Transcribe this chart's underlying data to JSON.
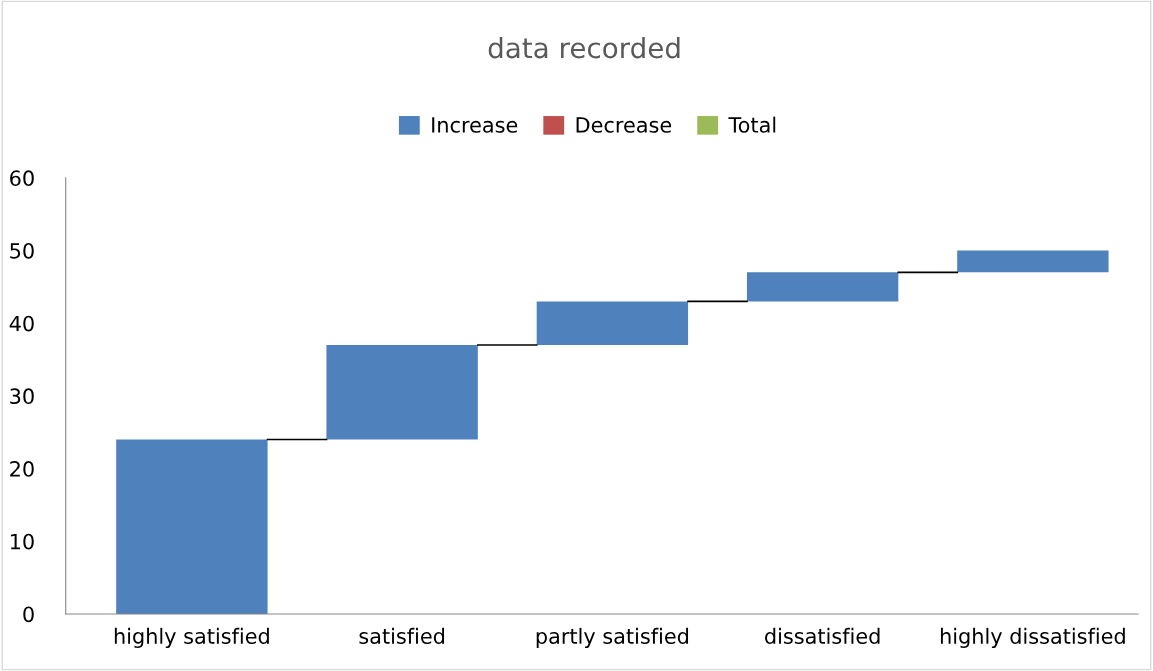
{
  "chart_data": {
    "type": "bar",
    "title": "data recorded",
    "categories": [
      "highly satisfied",
      "satisfied",
      "partly satisfied",
      "dissatisfied",
      "highly dissatisfied"
    ],
    "series": [
      {
        "name": "Increase",
        "color": "#4f81bd",
        "base": [
          0,
          24,
          37,
          43,
          47
        ],
        "values": [
          24,
          13,
          6,
          4,
          3
        ]
      },
      {
        "name": "Decrease",
        "color": "#c0504d",
        "values": [
          null,
          null,
          null,
          null,
          null
        ]
      },
      {
        "name": "Total",
        "color": "#9bbb59",
        "values": [
          null,
          null,
          null,
          null,
          null
        ]
      }
    ],
    "ylim": [
      0,
      60
    ],
    "yticks": [
      0,
      10,
      20,
      30,
      40,
      50,
      60
    ],
    "grid": false,
    "legend": "top"
  }
}
